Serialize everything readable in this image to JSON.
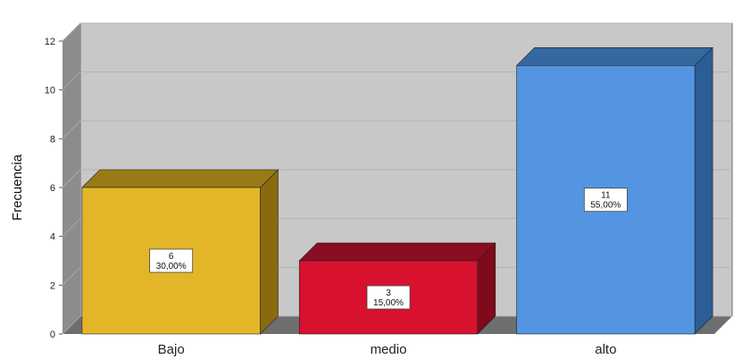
{
  "chart_data": {
    "type": "bar",
    "style": "3d",
    "title": "",
    "xlabel": "",
    "ylabel": "Frecuencia",
    "categories": [
      "Bajo",
      "medio",
      "alto"
    ],
    "values": [
      6,
      3,
      11
    ],
    "percent_labels": [
      "30,00%",
      "15,00%",
      "55,00%"
    ],
    "count_labels": [
      "6",
      "3",
      "11"
    ],
    "ylim": [
      0,
      12
    ],
    "yticks": [
      "0",
      "2",
      "4",
      "6",
      "8",
      "10",
      "12"
    ],
    "grid": true,
    "legend": "none",
    "colors": {
      "bars": [
        "#e3b62a",
        "#d8112f",
        "#5495e1"
      ],
      "bar_sides": [
        "#8a6a10",
        "#7e0a1c",
        "#2c5d96"
      ],
      "bar_tops": [
        "#9a7a16",
        "#8c0c22",
        "#35689f"
      ],
      "plot_back": "#c8c8c8",
      "plot_wall": "#8c8c8c",
      "plot_floor": "#6e6e6e"
    }
  }
}
